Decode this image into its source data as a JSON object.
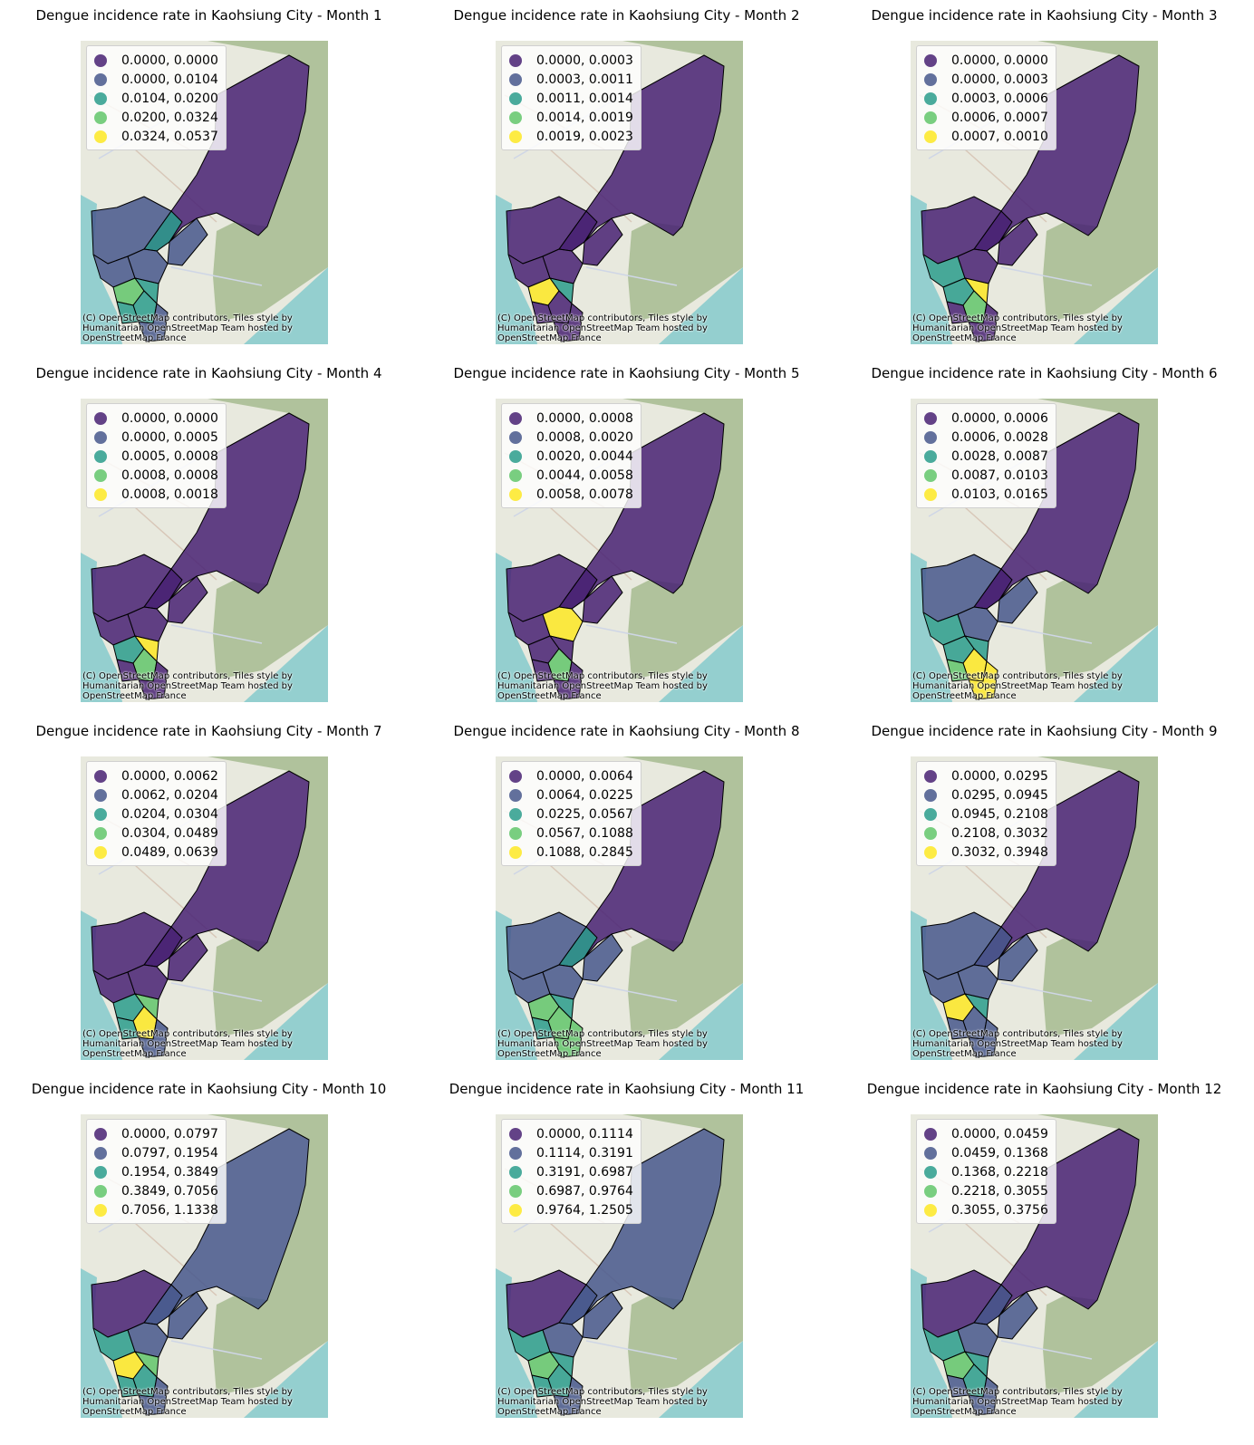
{
  "colors": {
    "class_1": "#482173",
    "class_2": "#46578c",
    "class_3": "#2a9c8c",
    "class_4": "#62c66b",
    "class_5": "#fde725",
    "sea": "#94cfcf",
    "land": "#e8e9de",
    "mountain": "#b0c29c",
    "boundary": "#000000"
  },
  "attribution": "(C) OpenStreetMap contributors, Tiles style by Humanitarian OpenStreetMap Team hosted by OpenStreetMap France",
  "panels": [
    {
      "title": "Dengue incidence rate in Kaohsiung City - Month 1",
      "legend": [
        "0.0000, 0.0000",
        "0.0000, 0.0104",
        "0.0104, 0.0200",
        "0.0200, 0.0324",
        "0.0324, 0.0537"
      ]
    },
    {
      "title": "Dengue incidence rate in Kaohsiung City - Month 2",
      "legend": [
        "0.0000, 0.0003",
        "0.0003, 0.0011",
        "0.0011, 0.0014",
        "0.0014, 0.0019",
        "0.0019, 0.0023"
      ]
    },
    {
      "title": "Dengue incidence rate in Kaohsiung City - Month 3",
      "legend": [
        "0.0000, 0.0000",
        "0.0000, 0.0003",
        "0.0003, 0.0006",
        "0.0006, 0.0007",
        "0.0007, 0.0010"
      ]
    },
    {
      "title": "Dengue incidence rate in Kaohsiung City - Month 4",
      "legend": [
        "0.0000, 0.0000",
        "0.0000, 0.0005",
        "0.0005, 0.0008",
        "0.0008, 0.0008",
        "0.0008, 0.0018"
      ]
    },
    {
      "title": "Dengue incidence rate in Kaohsiung City - Month 5",
      "legend": [
        "0.0000, 0.0008",
        "0.0008, 0.0020",
        "0.0020, 0.0044",
        "0.0044, 0.0058",
        "0.0058, 0.0078"
      ]
    },
    {
      "title": "Dengue incidence rate in Kaohsiung City - Month 6",
      "legend": [
        "0.0000, 0.0006",
        "0.0006, 0.0028",
        "0.0028, 0.0087",
        "0.0087, 0.0103",
        "0.0103, 0.0165"
      ]
    },
    {
      "title": "Dengue incidence rate in Kaohsiung City - Month 7",
      "legend": [
        "0.0000, 0.0062",
        "0.0062, 0.0204",
        "0.0204, 0.0304",
        "0.0304, 0.0489",
        "0.0489, 0.0639"
      ]
    },
    {
      "title": "Dengue incidence rate in Kaohsiung City - Month 8",
      "legend": [
        "0.0000, 0.0064",
        "0.0064, 0.0225",
        "0.0225, 0.0567",
        "0.0567, 0.1088",
        "0.1088, 0.2845"
      ]
    },
    {
      "title": "Dengue incidence rate in Kaohsiung City - Month 9",
      "legend": [
        "0.0000, 0.0295",
        "0.0295, 0.0945",
        "0.0945, 0.2108",
        "0.2108, 0.3032",
        "0.3032, 0.3948"
      ]
    },
    {
      "title": "Dengue incidence rate in Kaohsiung City - Month 10",
      "legend": [
        "0.0000, 0.0797",
        "0.0797, 0.1954",
        "0.1954, 0.3849",
        "0.3849, 0.7056",
        "0.7056, 1.1338"
      ]
    },
    {
      "title": "Dengue incidence rate in Kaohsiung City - Month 11",
      "legend": [
        "0.0000, 0.1114",
        "0.1114, 0.3191",
        "0.3191, 0.6987",
        "0.6987, 0.9764",
        "0.9764, 1.2505"
      ]
    },
    {
      "title": "Dengue incidence rate in Kaohsiung City - Month 12",
      "legend": [
        "0.0000, 0.0459",
        "0.0459, 0.1368",
        "0.1368, 0.2218",
        "0.2218, 0.3055",
        "0.3055, 0.3756"
      ]
    }
  ]
}
